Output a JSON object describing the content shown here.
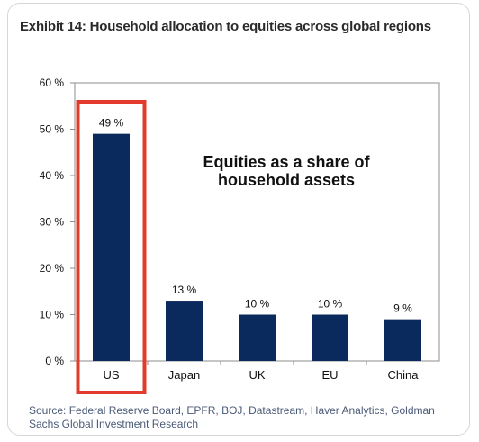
{
  "title": "Exhibit 14: Household allocation to equities across global regions",
  "source": "Source: Federal Reserve Board, EPFR, BOJ, Datastream, Haver Analytics, Goldman Sachs Global Investment Research",
  "colors": {
    "bar": "#0a2a5e",
    "highlight": "#e23b2e",
    "text": "#111111"
  },
  "chart_data": {
    "type": "bar",
    "categories": [
      "US",
      "Japan",
      "UK",
      "EU",
      "China"
    ],
    "values": [
      49,
      13,
      10,
      10,
      9
    ],
    "data_labels": [
      "49 %",
      "13 %",
      "10 %",
      "10 %",
      "9 %"
    ],
    "ylim": [
      0,
      60
    ],
    "yticks": [
      0,
      10,
      20,
      30,
      40,
      50,
      60
    ],
    "ytick_labels": [
      "0 %",
      "10 %",
      "20 %",
      "30 %",
      "40 %",
      "50 %",
      "60 %"
    ],
    "annotation": [
      "Equities as a share of",
      "household assets"
    ],
    "highlighted_category": "US",
    "grid": false,
    "legend": "none"
  }
}
